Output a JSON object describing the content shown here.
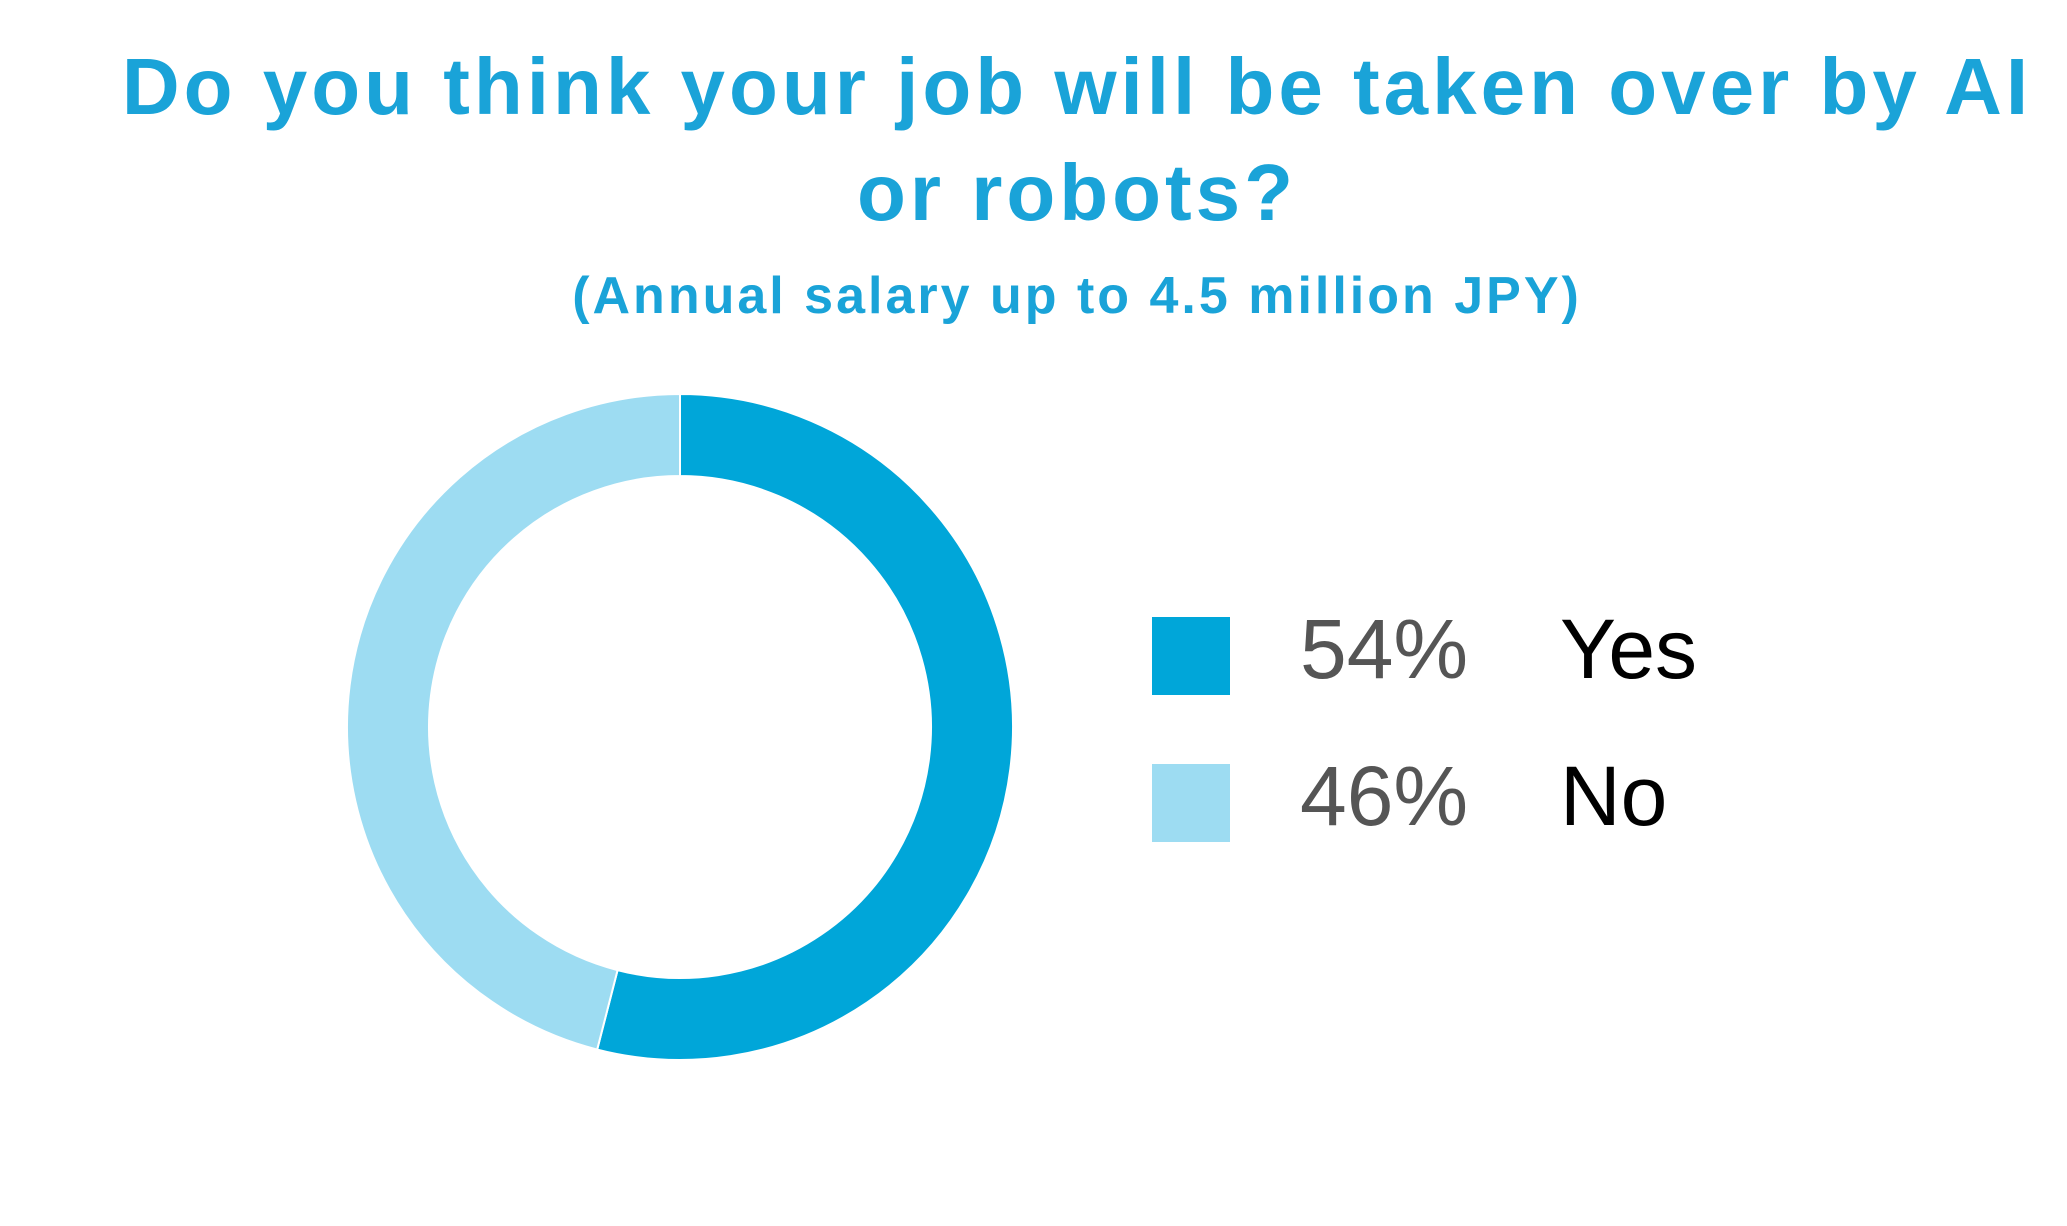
{
  "chart_data": {
    "type": "donut",
    "title": "Do you think your job will be taken over by AI or robots?",
    "subtitle": "(Annual salary up to 4.5 million JPY)",
    "categories": [
      "Yes",
      "No"
    ],
    "values": [
      54,
      46
    ],
    "value_labels": [
      "54%",
      "46%"
    ],
    "colors": [
      "#00a6d9",
      "#9ddcf2"
    ]
  }
}
